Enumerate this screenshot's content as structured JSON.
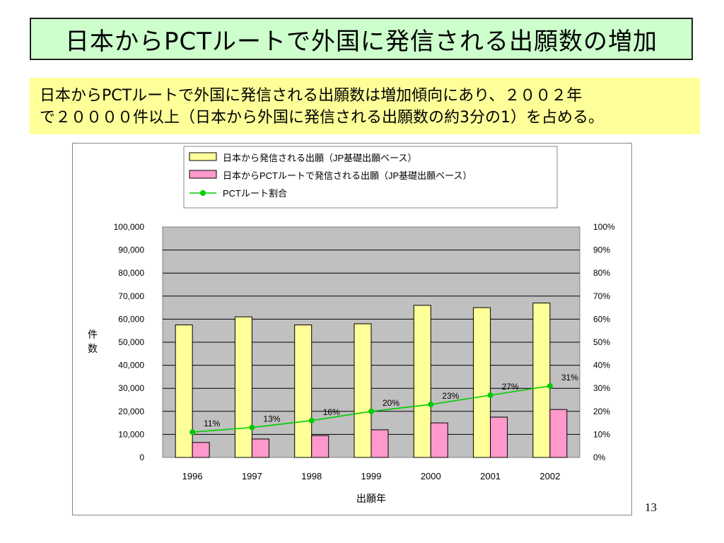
{
  "slide": {
    "title": "日本からPCTルートで外国に発信される出願数の増加",
    "note_line1": "日本からPCTルートで外国に発信される出願数は増加傾向にあり、２００２年",
    "note_line2": "で２００００件以上（日本から外国に発信される出願数の約3分の1）を占める。",
    "page_number": "13"
  },
  "chart_data": {
    "type": "bar",
    "categories": [
      "1996",
      "1997",
      "1998",
      "1999",
      "2000",
      "2001",
      "2002"
    ],
    "series": [
      {
        "name": "日本から発信される出願（JP基礎出願ベース）",
        "kind": "bar",
        "axis": "left",
        "color": "#ffff99",
        "values": [
          57500,
          61000,
          57500,
          58000,
          66000,
          65000,
          67000
        ]
      },
      {
        "name": "日本からPCTルートで発信される出願（JP基礎出願ベース）",
        "kind": "bar",
        "axis": "left",
        "color": "#ff99cc",
        "values": [
          6500,
          8000,
          9500,
          12000,
          15000,
          17500,
          20800
        ]
      },
      {
        "name": "PCTルート割合",
        "kind": "line",
        "axis": "right",
        "color": "#00cc00",
        "values": [
          11,
          13,
          16,
          20,
          23,
          27,
          31
        ],
        "labels": [
          "11%",
          "13%",
          "16%",
          "20%",
          "23%",
          "27%",
          "31%"
        ]
      }
    ],
    "xlabel": "出願年",
    "ylabel": "件数",
    "ylim": [
      0,
      100000
    ],
    "y2lim": [
      0,
      100
    ],
    "yticks": [
      "0",
      "10,000",
      "20,000",
      "30,000",
      "40,000",
      "50,000",
      "60,000",
      "70,000",
      "80,000",
      "90,000",
      "100,000"
    ],
    "y2ticks": [
      "0%",
      "10%",
      "20%",
      "30%",
      "40%",
      "50%",
      "60%",
      "70%",
      "80%",
      "90%",
      "100%"
    ],
    "grid": true,
    "legend": "top",
    "plot_background": "#c0c0c0"
  }
}
